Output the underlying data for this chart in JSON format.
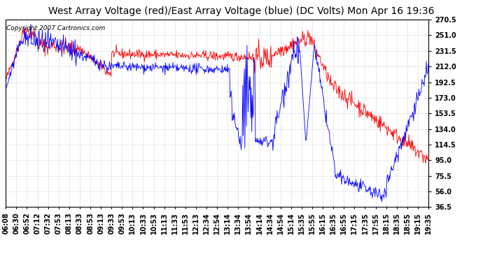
{
  "title": "West Array Voltage (red)/East Array Voltage (blue) (DC Volts) Mon Apr 16 19:36",
  "copyright_text": "Copyright 2007 Cartronics.com",
  "yticks": [
    36.5,
    56.0,
    75.5,
    95.0,
    114.5,
    134.0,
    153.5,
    173.0,
    192.5,
    212.0,
    231.5,
    251.0,
    270.5
  ],
  "ylim": [
    36.5,
    270.5
  ],
  "xtick_labels": [
    "06:08",
    "06:30",
    "06:52",
    "07:12",
    "07:32",
    "07:53",
    "08:13",
    "08:33",
    "08:53",
    "09:13",
    "09:33",
    "09:53",
    "10:13",
    "10:33",
    "10:53",
    "11:13",
    "11:33",
    "11:53",
    "12:13",
    "12:34",
    "12:54",
    "13:14",
    "13:34",
    "13:54",
    "14:14",
    "14:34",
    "14:54",
    "15:14",
    "15:35",
    "15:55",
    "16:15",
    "16:35",
    "16:55",
    "17:15",
    "17:35",
    "17:55",
    "18:15",
    "18:35",
    "18:55",
    "19:15",
    "19:35"
  ],
  "background_color": "#ffffff",
  "plot_bg_color": "#ffffff",
  "grid_color": "#b0b0b0",
  "red_color": "#ff0000",
  "blue_color": "#0000ff",
  "title_fontsize": 10,
  "tick_fontsize": 7,
  "copyright_fontsize": 6.5
}
